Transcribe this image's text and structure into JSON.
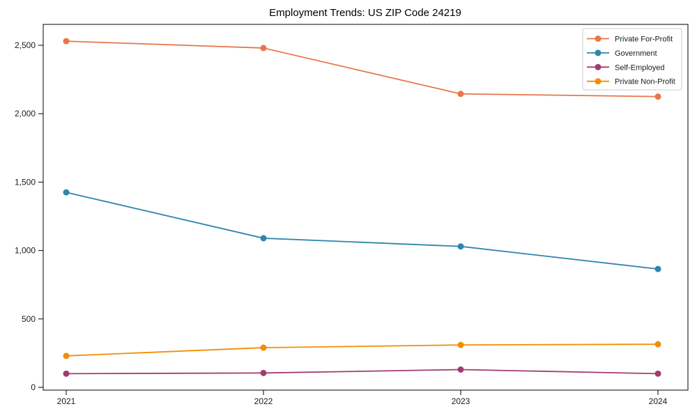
{
  "chart_data": {
    "type": "line",
    "title": "Employment Trends: US ZIP Code 24219",
    "xlabel": "",
    "ylabel": "",
    "categories": [
      "2021",
      "2022",
      "2023",
      "2024"
    ],
    "series": [
      {
        "name": "Private For-Profit",
        "color": "#E8764B",
        "values": [
          2530,
          2480,
          2145,
          2125
        ]
      },
      {
        "name": "Government",
        "color": "#2E86AB",
        "values": [
          1425,
          1090,
          1030,
          865
        ]
      },
      {
        "name": "Self-Employed",
        "color": "#A23B72",
        "values": [
          100,
          105,
          130,
          100
        ]
      },
      {
        "name": "Private Non-Profit",
        "color": "#F18F01",
        "values": [
          230,
          290,
          310,
          315
        ]
      }
    ],
    "yticks": [
      0,
      500,
      1000,
      1500,
      2000,
      2500
    ],
    "ytick_labels": [
      "0",
      "500",
      "1,000",
      "1,500",
      "2,000",
      "2,500"
    ],
    "ylim": [
      0,
      2650
    ],
    "grid": false,
    "frame": "full-box",
    "marker": "circle",
    "legend_position": "upper right",
    "axis_color": "#000000"
  }
}
